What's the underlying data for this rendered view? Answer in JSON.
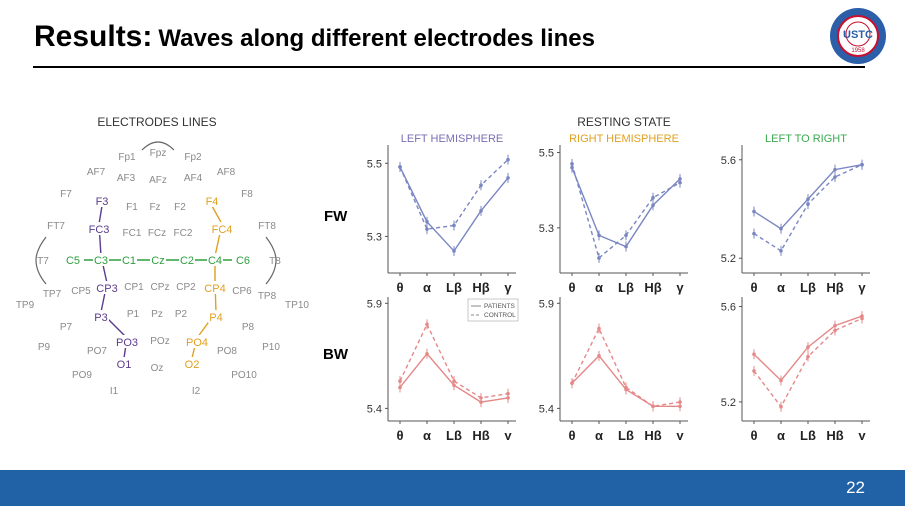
{
  "slide": {
    "title_main": "Results:",
    "title_sub": "Waves along different electrodes lines",
    "page_number": "22",
    "logo": {
      "text": "USTC",
      "year": "1958",
      "colors": {
        "outer": "#2c5fa8",
        "inner": "#c8102e"
      }
    }
  },
  "electrodes_panel": {
    "title": "ELECTRODES LINES",
    "colors": {
      "gray": "#8a8a8a",
      "green": "#2e9e3e",
      "purple": "#5b3c8c",
      "orange": "#e0a020"
    },
    "labels": [
      {
        "t": "Fp1",
        "c": "gray"
      },
      {
        "t": "Fpz",
        "c": "gray"
      },
      {
        "t": "Fp2",
        "c": "gray"
      },
      {
        "t": "AF7",
        "c": "gray"
      },
      {
        "t": "AF3",
        "c": "gray"
      },
      {
        "t": "AFz",
        "c": "gray"
      },
      {
        "t": "AF4",
        "c": "gray"
      },
      {
        "t": "AF8",
        "c": "gray"
      },
      {
        "t": "F7",
        "c": "gray"
      },
      {
        "t": "F3",
        "c": "purple"
      },
      {
        "t": "F1",
        "c": "gray"
      },
      {
        "t": "Fz",
        "c": "gray"
      },
      {
        "t": "F2",
        "c": "gray"
      },
      {
        "t": "F4",
        "c": "orange"
      },
      {
        "t": "F8",
        "c": "gray"
      },
      {
        "t": "FT7",
        "c": "gray"
      },
      {
        "t": "FC3",
        "c": "purple"
      },
      {
        "t": "FC1",
        "c": "gray"
      },
      {
        "t": "FCz",
        "c": "gray"
      },
      {
        "t": "FC2",
        "c": "gray"
      },
      {
        "t": "FC4",
        "c": "orange"
      },
      {
        "t": "FT8",
        "c": "gray"
      },
      {
        "t": "T7",
        "c": "gray"
      },
      {
        "t": "C5",
        "c": "green"
      },
      {
        "t": "C3",
        "c": "green"
      },
      {
        "t": "C1",
        "c": "green"
      },
      {
        "t": "Cz",
        "c": "green"
      },
      {
        "t": "C2",
        "c": "green"
      },
      {
        "t": "C4",
        "c": "green"
      },
      {
        "t": "C6",
        "c": "green"
      },
      {
        "t": "T8",
        "c": "gray"
      },
      {
        "t": "TP7",
        "c": "gray"
      },
      {
        "t": "CP5",
        "c": "gray"
      },
      {
        "t": "CP3",
        "c": "purple"
      },
      {
        "t": "CP1",
        "c": "gray"
      },
      {
        "t": "CPz",
        "c": "gray"
      },
      {
        "t": "CP2",
        "c": "gray"
      },
      {
        "t": "CP4",
        "c": "orange"
      },
      {
        "t": "CP6",
        "c": "gray"
      },
      {
        "t": "TP8",
        "c": "gray"
      },
      {
        "t": "TP9",
        "c": "gray"
      },
      {
        "t": "TP10",
        "c": "gray"
      },
      {
        "t": "P7",
        "c": "gray"
      },
      {
        "t": "P3",
        "c": "purple"
      },
      {
        "t": "P1",
        "c": "gray"
      },
      {
        "t": "Pz",
        "c": "gray"
      },
      {
        "t": "P2",
        "c": "gray"
      },
      {
        "t": "P4",
        "c": "orange"
      },
      {
        "t": "P8",
        "c": "gray"
      },
      {
        "t": "P9",
        "c": "gray"
      },
      {
        "t": "PO7",
        "c": "gray"
      },
      {
        "t": "PO3",
        "c": "purple"
      },
      {
        "t": "POz",
        "c": "gray"
      },
      {
        "t": "PO4",
        "c": "orange"
      },
      {
        "t": "PO8",
        "c": "gray"
      },
      {
        "t": "P10",
        "c": "gray"
      },
      {
        "t": "O1",
        "c": "purple"
      },
      {
        "t": "Oz",
        "c": "gray"
      },
      {
        "t": "O2",
        "c": "orange"
      },
      {
        "t": "PO9",
        "c": "gray"
      },
      {
        "t": "PO10",
        "c": "gray"
      },
      {
        "t": "I1",
        "c": "gray"
      },
      {
        "t": "I2",
        "c": "gray"
      }
    ]
  },
  "row_labels": {
    "fw": "FW",
    "bw": "BW"
  },
  "chart_data": {
    "type": "line",
    "title": "RESTING STATE",
    "categories": [
      "θ",
      "α",
      "Lβ",
      "Hβ",
      "γ"
    ],
    "legend": {
      "patients": "PATIENTS",
      "control": "CONTROL"
    },
    "colors": {
      "fw": "#7a86c2",
      "bw": "#e48888",
      "left": "#7a6fb5",
      "right": "#e0a020",
      "lr": "#3aaa50"
    },
    "panels": [
      {
        "row": "fw",
        "col": "left",
        "column_title": "LEFT HEMISPHERE",
        "ylim": [
          5.2,
          5.55
        ],
        "yticks": [
          "5.5",
          "5.3"
        ],
        "tick_values": [
          5.5,
          5.3
        ],
        "series": [
          {
            "name": "PATIENTS",
            "values": [
              5.49,
              5.34,
              5.26,
              5.37,
              5.46
            ]
          },
          {
            "name": "CONTROL",
            "values": [
              5.49,
              5.32,
              5.33,
              5.44,
              5.51
            ]
          }
        ]
      },
      {
        "row": "fw",
        "col": "right",
        "column_title": "RIGHT HEMISPHERE",
        "ylim": [
          5.18,
          5.52
        ],
        "yticks": [
          "5.5",
          "5.3"
        ],
        "tick_values": [
          5.5,
          5.3
        ],
        "series": [
          {
            "name": "PATIENTS",
            "values": [
              5.46,
              5.28,
              5.25,
              5.36,
              5.43
            ]
          },
          {
            "name": "CONTROL",
            "values": [
              5.47,
              5.22,
              5.28,
              5.38,
              5.42
            ]
          }
        ]
      },
      {
        "row": "fw",
        "col": "lr",
        "column_title": "LEFT TO RIGHT",
        "ylim": [
          5.14,
          5.66
        ],
        "yticks": [
          "5.6",
          "5.2"
        ],
        "tick_values": [
          5.6,
          5.2
        ],
        "series": [
          {
            "name": "PATIENTS",
            "values": [
              5.39,
              5.32,
              5.44,
              5.56,
              5.58
            ]
          },
          {
            "name": "CONTROL",
            "values": [
              5.3,
              5.23,
              5.42,
              5.53,
              5.58
            ]
          }
        ]
      },
      {
        "row": "bw",
        "col": "left",
        "ylim": [
          5.34,
          5.93
        ],
        "yticks": [
          "5.9",
          "5.4"
        ],
        "tick_values": [
          5.9,
          5.4
        ],
        "series": [
          {
            "name": "PATIENTS",
            "values": [
              5.5,
              5.66,
              5.51,
              5.43,
              5.45
            ]
          },
          {
            "name": "CONTROL",
            "values": [
              5.53,
              5.8,
              5.53,
              5.45,
              5.47
            ]
          }
        ]
      },
      {
        "row": "bw",
        "col": "right",
        "ylim": [
          5.34,
          5.93
        ],
        "yticks": [
          "5.9",
          "5.4"
        ],
        "tick_values": [
          5.9,
          5.4
        ],
        "series": [
          {
            "name": "PATIENTS",
            "values": [
              5.52,
              5.65,
              5.49,
              5.41,
              5.41
            ]
          },
          {
            "name": "CONTROL",
            "values": [
              5.52,
              5.78,
              5.5,
              5.41,
              5.43
            ]
          }
        ]
      },
      {
        "row": "bw",
        "col": "lr",
        "ylim": [
          5.12,
          5.64
        ],
        "yticks": [
          "5.6",
          "5.2"
        ],
        "tick_values": [
          5.6,
          5.2
        ],
        "series": [
          {
            "name": "PATIENTS",
            "values": [
              5.4,
              5.29,
              5.43,
              5.52,
              5.56
            ]
          },
          {
            "name": "CONTROL",
            "values": [
              5.33,
              5.18,
              5.39,
              5.5,
              5.55
            ]
          }
        ]
      }
    ]
  }
}
